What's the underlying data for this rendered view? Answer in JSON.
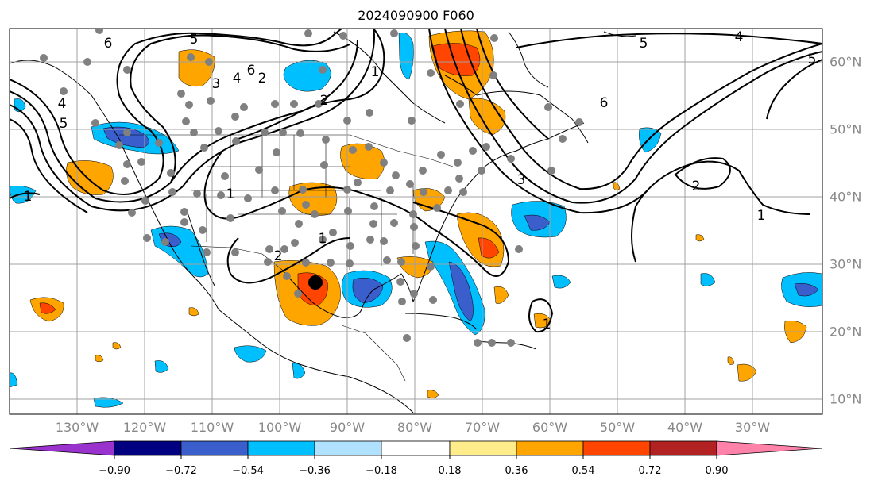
{
  "title": "2024090900 F060",
  "lon_labels": [
    "130°W",
    "120°W",
    "110°W",
    "100°W",
    "90°W",
    "80°W",
    "70°W",
    "60°W",
    "50°W",
    "40°W",
    "30°W"
  ],
  "lat_labels": [
    "60°N",
    "50°N",
    "40°N",
    "30°N",
    "20°N",
    "10°N"
  ],
  "colorbar": {
    "ticks": [
      "−0.90",
      "−0.72",
      "−0.54",
      "−0.36",
      "−0.18",
      "0.18",
      "0.36",
      "0.54",
      "0.72",
      "0.90"
    ],
    "colors": [
      "#9a32cd",
      "#000080",
      "#3a5fcd",
      "#00bfff",
      "#b0e2ff",
      "#ffffff",
      "#ffec8b",
      "#ffa500",
      "#ff4500",
      "#b22222",
      "#ff82ab"
    ]
  },
  "contour_labels": [
    "5",
    "6",
    "4",
    "3",
    "6",
    "2",
    "1",
    "2",
    "1",
    "2",
    "1",
    "5",
    "4",
    "5",
    "6",
    "3",
    "2",
    "1",
    "1",
    "4",
    "5",
    "1"
  ],
  "marker": {
    "lon": "95°W",
    "lat": "27.5°N"
  },
  "colors": {
    "station_dot": "#808080",
    "marker_dot": "#000000",
    "contour": "#000000",
    "grid": "#a0a0a0",
    "axis_label": "#888888"
  }
}
